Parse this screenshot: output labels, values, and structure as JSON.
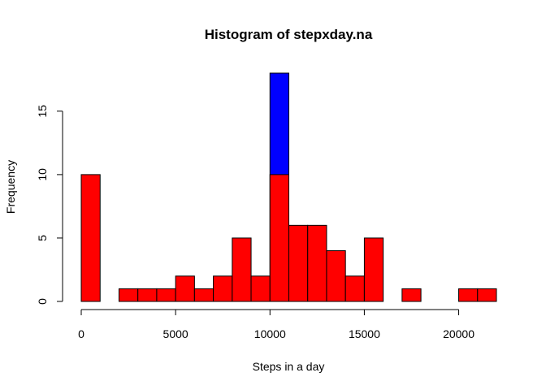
{
  "chart_data": {
    "type": "bar",
    "title": "Histogram of stepxday.na",
    "xlabel": "Steps in a day",
    "ylabel": "Frequency",
    "xlim": [
      0,
      22000
    ],
    "ylim": [
      0,
      18
    ],
    "xticks": [
      0,
      5000,
      10000,
      15000,
      20000
    ],
    "yticks": [
      0,
      5,
      10,
      15
    ],
    "bin_width": 1000,
    "series": [
      {
        "color": "#0000ff",
        "bins": [
          {
            "start": 10000,
            "end": 11000,
            "count": 18
          }
        ]
      },
      {
        "color": "#ff0000",
        "bins": [
          {
            "start": 0,
            "end": 1000,
            "count": 10
          },
          {
            "start": 1000,
            "end": 2000,
            "count": 0
          },
          {
            "start": 2000,
            "end": 3000,
            "count": 1
          },
          {
            "start": 3000,
            "end": 4000,
            "count": 1
          },
          {
            "start": 4000,
            "end": 5000,
            "count": 1
          },
          {
            "start": 5000,
            "end": 6000,
            "count": 2
          },
          {
            "start": 6000,
            "end": 7000,
            "count": 1
          },
          {
            "start": 7000,
            "end": 8000,
            "count": 2
          },
          {
            "start": 8000,
            "end": 9000,
            "count": 5
          },
          {
            "start": 9000,
            "end": 10000,
            "count": 2
          },
          {
            "start": 10000,
            "end": 11000,
            "count": 10
          },
          {
            "start": 11000,
            "end": 12000,
            "count": 6
          },
          {
            "start": 12000,
            "end": 13000,
            "count": 6
          },
          {
            "start": 13000,
            "end": 14000,
            "count": 4
          },
          {
            "start": 14000,
            "end": 15000,
            "count": 2
          },
          {
            "start": 15000,
            "end": 16000,
            "count": 5
          },
          {
            "start": 16000,
            "end": 17000,
            "count": 0
          },
          {
            "start": 17000,
            "end": 18000,
            "count": 1
          },
          {
            "start": 18000,
            "end": 19000,
            "count": 0
          },
          {
            "start": 19000,
            "end": 20000,
            "count": 0
          },
          {
            "start": 20000,
            "end": 21000,
            "count": 1
          },
          {
            "start": 21000,
            "end": 22000,
            "count": 1
          }
        ]
      }
    ]
  }
}
